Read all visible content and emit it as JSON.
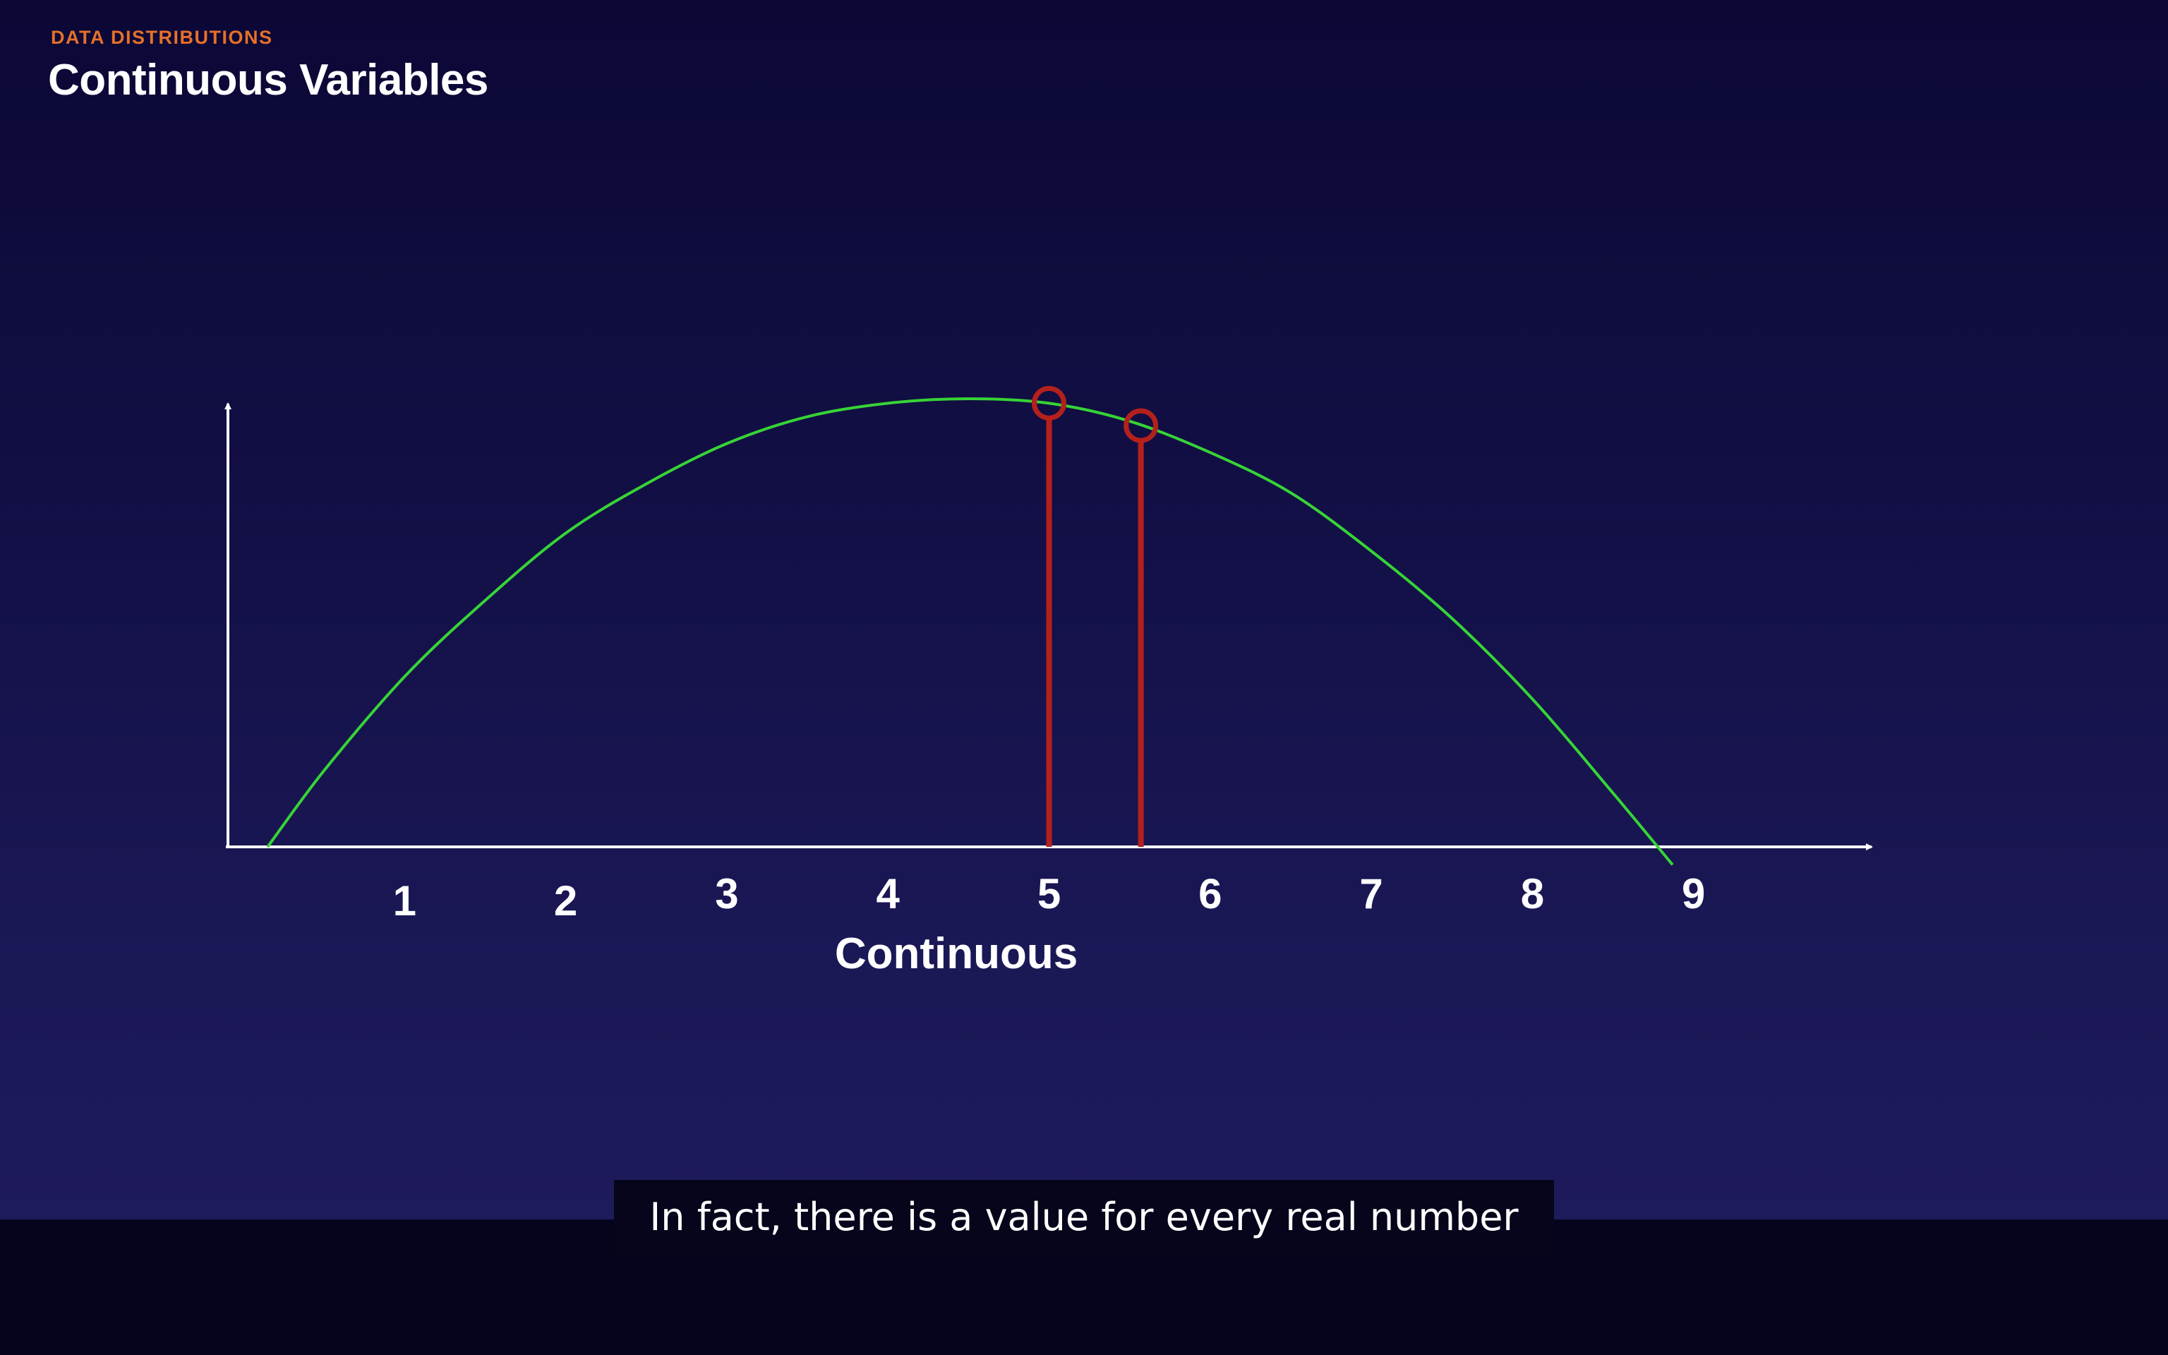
{
  "header": {
    "section": "DATA DISTRIBUTIONS",
    "title": "Continuous Variables"
  },
  "caption": "In fact, there is a value for every real number",
  "colors": {
    "section": "#e5702a",
    "curve": "#37d436",
    "marker": "#b4211c",
    "axis": "#ffffff",
    "text": "#ffffff",
    "background": "#120f45"
  },
  "chart_data": {
    "type": "line",
    "title": "",
    "xlabel": "Continuous",
    "ylabel": "",
    "x_ticks": [
      "1",
      "2",
      "3",
      "4",
      "5",
      "6",
      "7",
      "8",
      "9"
    ],
    "xlim": [
      0,
      10.3
    ],
    "ylim": [
      0,
      1
    ],
    "grid": false,
    "series": [
      {
        "x": [
          0.15,
          0.5,
          1.0,
          1.5,
          2.0,
          2.5,
          3.0,
          3.5,
          4.0,
          4.5,
          5.0,
          5.5,
          6.0,
          6.5,
          7.0,
          7.5,
          8.0,
          8.5,
          8.87
        ],
        "y": [
          0.0,
          0.17,
          0.38,
          0.55,
          0.7,
          0.81,
          0.9,
          0.96,
          0.99,
          1.0,
          0.99,
          0.95,
          0.88,
          0.79,
          0.66,
          0.51,
          0.33,
          0.12,
          -0.04
        ]
      }
    ],
    "markers": [
      {
        "x": 5.0,
        "y": 0.99
      },
      {
        "x": 5.57,
        "y": 0.94
      }
    ]
  }
}
